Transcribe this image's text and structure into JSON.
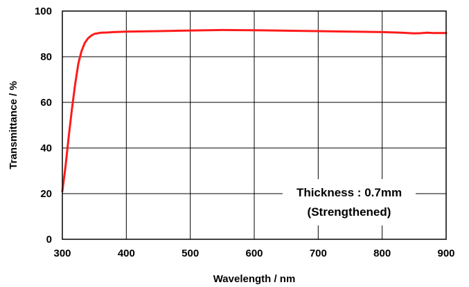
{
  "chart_data": {
    "type": "line",
    "title": "",
    "xlabel": "Wavelength / nm",
    "ylabel": "Transmittance / %",
    "xlim": [
      300,
      900
    ],
    "ylim": [
      0,
      100
    ],
    "x_ticks": [
      "300",
      "400",
      "500",
      "600",
      "700",
      "800",
      "900"
    ],
    "y_ticks": [
      "0",
      "20",
      "40",
      "60",
      "80",
      "100"
    ],
    "grid": true,
    "annotation": [
      "Thickness : 0.7mm",
      "(Strengthened)"
    ],
    "series": [
      {
        "color": "#ff1a1a",
        "x": [
          300,
          305,
          310,
          315,
          320,
          325,
          330,
          335,
          340,
          345,
          350,
          360,
          370,
          380,
          400,
          450,
          500,
          550,
          600,
          650,
          700,
          750,
          800,
          830,
          850,
          860,
          870,
          880,
          900
        ],
        "y": [
          21,
          32,
          45,
          57,
          68,
          77,
          82.5,
          86,
          88,
          89.2,
          90,
          90.5,
          90.6,
          90.8,
          91,
          91.2,
          91.5,
          91.7,
          91.6,
          91.4,
          91.2,
          91,
          90.8,
          90.5,
          90.2,
          90.3,
          90.5,
          90.4,
          90.4
        ]
      }
    ]
  }
}
